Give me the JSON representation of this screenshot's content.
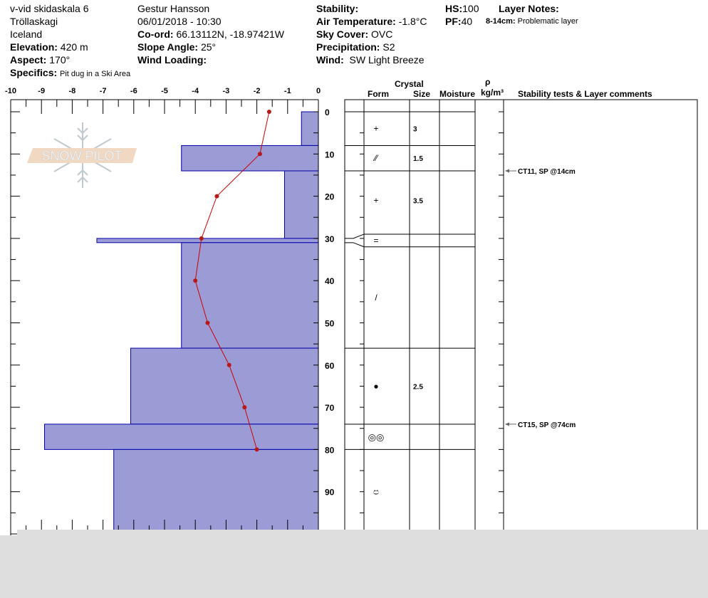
{
  "header": {
    "pit_name": "v-vid skidaskala 6",
    "region": "Tröllaskagi",
    "country": "Iceland",
    "elevation_label": "Elevation:",
    "elevation": "420 m",
    "aspect_label": "Aspect:",
    "aspect": "170°",
    "specifics_label": "Specifics:",
    "specifics": "Pit dug in a Ski Area",
    "observer": "Gestur Hansson",
    "datetime": "06/01/2018 - 10:30",
    "coord_label": "Co-ord:",
    "coord": "66.13112N, -18.97421W",
    "slope_label": "Slope Angle:",
    "slope": "25°",
    "wind_loading_label": "Wind Loading:",
    "wind_loading": "",
    "stability_label": "Stability:",
    "stability": "",
    "air_temp_label": "Air Temperature:",
    "air_temp": "-1.8°C",
    "sky_label": "Sky Cover:",
    "sky": "OVC",
    "precip_label": "Precipitation:",
    "precip": "S2",
    "wind_label": "Wind:",
    "wind": "SW Light Breeze",
    "hs_label": "HS:",
    "hs": "100",
    "pf_label": "PF:",
    "pf": "40",
    "layer_notes_label": "Layer Notes:",
    "layer_note_range": "8-14cm:",
    "layer_note_text": "Problematic layer"
  },
  "logo": {
    "text": "SNOW PILOT"
  },
  "table_headers": {
    "crystal": "Crystal",
    "form": "Form",
    "size": "Size",
    "moisture": "Moisture",
    "rho": "ρ",
    "density_unit": "kg/m³",
    "comments": "Stability tests & Layer comments"
  },
  "chart_data": {
    "type": "bar",
    "x_axis": {
      "ticks": [
        "-10",
        "-9",
        "-8",
        "-7",
        "-6",
        "-5",
        "-4",
        "-3",
        "-2",
        "-1",
        "0"
      ],
      "range": [
        -10,
        0
      ]
    },
    "y_axis": {
      "ticks": [
        "0",
        "10",
        "20",
        "30",
        "40",
        "50",
        "60",
        "70",
        "80",
        "90"
      ],
      "range": [
        0,
        100
      ],
      "unit": "cm",
      "inverted": true
    },
    "colors": {
      "hardness_fill": "#9b9bd6",
      "hardness_edge": "#0000aa",
      "temperature": "#cc0000"
    },
    "hardness_layers": [
      {
        "top": 0,
        "bottom": 8,
        "value": -0.55
      },
      {
        "top": 8,
        "bottom": 14,
        "value": -4.45
      },
      {
        "top": 14,
        "bottom": 30,
        "value": -1.1
      },
      {
        "top": 30,
        "bottom": 31,
        "value": -7.2
      },
      {
        "top": 31,
        "bottom": 56,
        "value": -4.45
      },
      {
        "top": 56,
        "bottom": 74,
        "value": -6.1
      },
      {
        "top": 74,
        "bottom": 80,
        "value": -8.9
      },
      {
        "top": 80,
        "bottom": 100,
        "value": -6.65
      }
    ],
    "temperature_profile": [
      {
        "depth": 0,
        "temp": -1.6
      },
      {
        "depth": 10,
        "temp": -1.9
      },
      {
        "depth": 20,
        "temp": -3.3
      },
      {
        "depth": 30,
        "temp": -3.8
      },
      {
        "depth": 40,
        "temp": -4.0
      },
      {
        "depth": 50,
        "temp": -3.6
      },
      {
        "depth": 60,
        "temp": -2.9
      },
      {
        "depth": 70,
        "temp": -2.4
      },
      {
        "depth": 80,
        "temp": -2.0
      }
    ],
    "layers": [
      {
        "top": 0,
        "bottom": 8,
        "form": "+",
        "size": "3"
      },
      {
        "top": 8,
        "bottom": 14,
        "form": "⁄⁄",
        "size": "1.5"
      },
      {
        "top": 14,
        "bottom": 29,
        "form": "+",
        "size": "3.5"
      },
      {
        "top": 29,
        "bottom": 32,
        "form": "=",
        "size": ""
      },
      {
        "top": 32,
        "bottom": 56,
        "form": "/",
        "size": ""
      },
      {
        "top": 56,
        "bottom": 74,
        "form": "●",
        "size": "2.5"
      },
      {
        "top": 74,
        "bottom": 80,
        "form": "◎◎",
        "size": ""
      },
      {
        "top": 80,
        "bottom": 100,
        "form": "ප",
        "size": ""
      }
    ],
    "stability_tests": [
      {
        "depth": 14,
        "text": "CT11, SP @14cm"
      },
      {
        "depth": 74,
        "text": "CT15, SP @74cm"
      }
    ]
  }
}
